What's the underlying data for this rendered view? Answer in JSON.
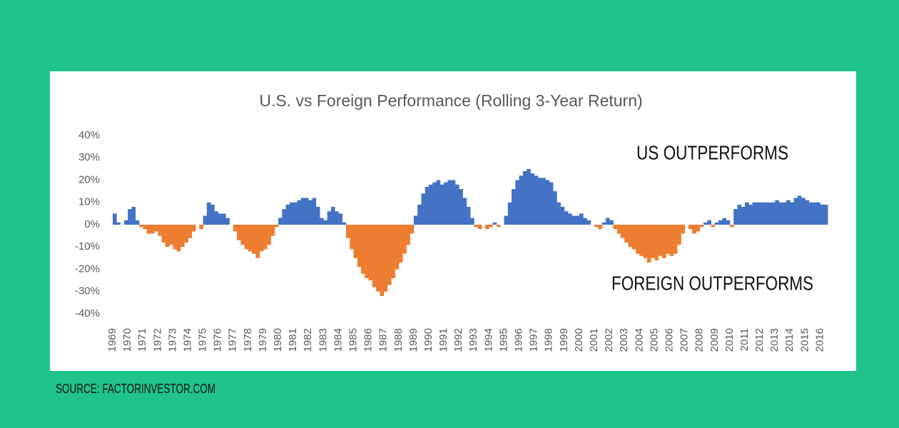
{
  "chart_data": {
    "type": "area",
    "title": "U.S. vs Foreign Performance (Rolling 3-Year Return)",
    "annotations": [
      "US OUTPERFORMS",
      "FOREIGN OUTPERFORMS"
    ],
    "source": "SOURCE: FACTORINVESTOR.COM",
    "positive_color": "#4472c4",
    "negative_color": "#ed7d31",
    "grid": false,
    "xlim": [
      1969,
      2016.5
    ],
    "xticks": [
      1969,
      1970,
      1971,
      1972,
      1973,
      1974,
      1975,
      1976,
      1977,
      1978,
      1979,
      1980,
      1981,
      1982,
      1983,
      1984,
      1985,
      1986,
      1987,
      1988,
      1989,
      1990,
      1991,
      1992,
      1993,
      1994,
      1995,
      1996,
      1997,
      1998,
      1999,
      2000,
      2001,
      2002,
      2003,
      2004,
      2005,
      2006,
      2007,
      2008,
      2009,
      2010,
      2011,
      2012,
      2013,
      2014,
      2015,
      2016
    ],
    "ylim": [
      -40,
      40
    ],
    "yticks": [
      {
        "value": 40,
        "label": "40%"
      },
      {
        "value": 30,
        "label": "30%"
      },
      {
        "value": 20,
        "label": "20%"
      },
      {
        "value": 10,
        "label": "10%"
      },
      {
        "value": 0,
        "label": "0%"
      },
      {
        "value": -10,
        "label": "-10%"
      },
      {
        "value": -20,
        "label": "-20%"
      },
      {
        "value": -30,
        "label": "-30%"
      },
      {
        "value": -40,
        "label": "-40%"
      }
    ],
    "x": [
      1969,
      1969.25,
      1969.5,
      1969.75,
      1970,
      1970.25,
      1970.5,
      1970.75,
      1971,
      1971.25,
      1971.5,
      1971.75,
      1972,
      1972.25,
      1972.5,
      1972.75,
      1973,
      1973.25,
      1973.5,
      1973.75,
      1974,
      1974.25,
      1974.5,
      1974.75,
      1975,
      1975.25,
      1975.5,
      1975.75,
      1976,
      1976.25,
      1976.5,
      1976.75,
      1977,
      1977.25,
      1977.5,
      1977.75,
      1978,
      1978.25,
      1978.5,
      1978.75,
      1979,
      1979.25,
      1979.5,
      1979.75,
      1980,
      1980.25,
      1980.5,
      1980.75,
      1981,
      1981.25,
      1981.5,
      1981.75,
      1982,
      1982.25,
      1982.5,
      1982.75,
      1983,
      1983.25,
      1983.5,
      1983.75,
      1984,
      1984.25,
      1984.5,
      1984.75,
      1985,
      1985.25,
      1985.5,
      1985.75,
      1986,
      1986.25,
      1986.5,
      1986.75,
      1987,
      1987.25,
      1987.5,
      1987.75,
      1988,
      1988.25,
      1988.5,
      1988.75,
      1989,
      1989.25,
      1989.5,
      1989.75,
      1990,
      1990.25,
      1990.5,
      1990.75,
      1991,
      1991.25,
      1991.5,
      1991.75,
      1992,
      1992.25,
      1992.5,
      1992.75,
      1993,
      1993.25,
      1993.5,
      1993.75,
      1994,
      1994.25,
      1994.5,
      1994.75,
      1995,
      1995.25,
      1995.5,
      1995.75,
      1996,
      1996.25,
      1996.5,
      1996.75,
      1997,
      1997.25,
      1997.5,
      1997.75,
      1998,
      1998.25,
      1998.5,
      1998.75,
      1999,
      1999.25,
      1999.5,
      1999.75,
      2000,
      2000.25,
      2000.5,
      2000.75,
      2001,
      2001.25,
      2001.5,
      2001.75,
      2002,
      2002.25,
      2002.5,
      2002.75,
      2003,
      2003.25,
      2003.5,
      2003.75,
      2004,
      2004.25,
      2004.5,
      2004.75,
      2005,
      2005.25,
      2005.5,
      2005.75,
      2006,
      2006.25,
      2006.5,
      2006.75,
      2007,
      2007.25,
      2007.5,
      2007.75,
      2008,
      2008.25,
      2008.5,
      2008.75,
      2009,
      2009.25,
      2009.5,
      2009.75,
      2010,
      2010.25,
      2010.5,
      2010.75,
      2011,
      2011.25,
      2011.5,
      2011.75,
      2012,
      2012.25,
      2012.5,
      2012.75,
      2013,
      2013.25,
      2013.5,
      2013.75,
      2014,
      2014.25,
      2014.5,
      2014.75,
      2015,
      2015.25,
      2015.5,
      2015.75,
      2016,
      2016.25
    ],
    "values": [
      5,
      1,
      0,
      2,
      7,
      8,
      2,
      -1,
      -2,
      -4,
      -4,
      -3,
      -5,
      -8,
      -10,
      -9,
      -11,
      -12,
      -10,
      -8,
      -6,
      -3,
      0,
      -2,
      4,
      10,
      9,
      6,
      5,
      5,
      3,
      0,
      -3,
      -7,
      -9,
      -11,
      -12,
      -13,
      -15,
      -12,
      -11,
      -9,
      -5,
      -1,
      3,
      7,
      9,
      10,
      10,
      11,
      12,
      12,
      11,
      12,
      8,
      3,
      2,
      6,
      8,
      6,
      5,
      1,
      -6,
      -11,
      -15,
      -19,
      -22,
      -24,
      -25,
      -28,
      -30,
      -32,
      -30,
      -27,
      -24,
      -20,
      -17,
      -13,
      -9,
      -4,
      4,
      9,
      14,
      17,
      18,
      19,
      20,
      18,
      19,
      20,
      20,
      18,
      16,
      12,
      8,
      3,
      -1,
      -2,
      0,
      -2,
      -1,
      1,
      -1,
      0,
      4,
      10,
      16,
      20,
      22,
      24,
      25,
      23,
      22,
      21,
      21,
      20,
      19,
      15,
      10,
      8,
      6,
      5,
      4,
      4,
      5,
      3,
      2,
      0,
      -1,
      -2,
      1,
      3,
      2,
      -2,
      -4,
      -6,
      -8,
      -10,
      -11,
      -13,
      -14,
      -15,
      -17,
      -15,
      -16,
      -14,
      -15,
      -13,
      -14,
      -13,
      -9,
      -4,
      0,
      -2,
      -4,
      -3,
      -1,
      1,
      2,
      -1,
      1,
      2,
      3,
      2,
      -1,
      7,
      9,
      8,
      10,
      9,
      10,
      10,
      10,
      10,
      10,
      10,
      11,
      10,
      10,
      11,
      10,
      12,
      13,
      12,
      11,
      10,
      10,
      10,
      9,
      9
    ]
  }
}
